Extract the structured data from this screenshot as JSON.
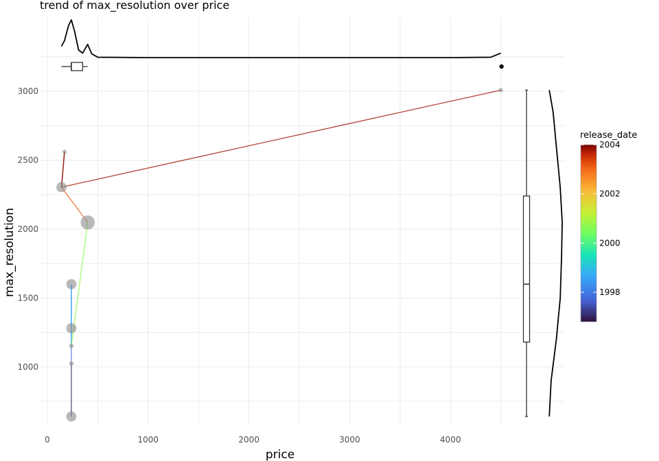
{
  "chart_data": {
    "type": "scatter",
    "title": "trend of max_resolution over price",
    "xlabel": "price",
    "ylabel": "max_resolution",
    "xlim": [
      -80,
      4800
    ],
    "ylim": [
      540,
      3460
    ],
    "x_ticks": [
      0,
      1000,
      2000,
      3000,
      4000
    ],
    "y_ticks": [
      1000,
      1500,
      2000,
      2500,
      3000
    ],
    "grid": true,
    "points": [
      {
        "x": 238,
        "y": 640,
        "size": 0.55,
        "release_date": 1997
      },
      {
        "x": 238,
        "y": 1024,
        "size": 0.1,
        "release_date": 1997
      },
      {
        "x": 238,
        "y": 1152,
        "size": 0.1,
        "release_date": 1998.5
      },
      {
        "x": 238,
        "y": 1280,
        "size": 0.55,
        "release_date": 1998.5
      },
      {
        "x": 238,
        "y": 1600,
        "size": 0.55,
        "release_date": 1998.3
      },
      {
        "x": 400,
        "y": 2048,
        "size": 0.85,
        "release_date": 2002.5
      },
      {
        "x": 140,
        "y": 2304,
        "size": 0.55,
        "release_date": 2003.8
      },
      {
        "x": 170,
        "y": 2560,
        "size": 0.1,
        "release_date": 2004
      },
      {
        "x": 4500,
        "y": 3008,
        "size": 0.1,
        "release_date": 2003.8
      }
    ],
    "line_order": [
      {
        "x": 238,
        "y": 640,
        "release_date": 1997
      },
      {
        "x": 238,
        "y": 1024,
        "release_date": 1997
      },
      {
        "x": 238,
        "y": 1152,
        "release_date": 1998.5
      },
      {
        "x": 238,
        "y": 1600,
        "release_date": 1998.3
      },
      {
        "x": 238,
        "y": 1152,
        "release_date": 1998.8
      },
      {
        "x": 400,
        "y": 2048,
        "release_date": 2002.5
      },
      {
        "x": 140,
        "y": 2304,
        "release_date": 2003.8
      },
      {
        "x": 170,
        "y": 2560,
        "release_date": 2004
      },
      {
        "x": 140,
        "y": 2304,
        "release_date": 2003.8
      },
      {
        "x": 4500,
        "y": 3008,
        "release_date": 2003.8
      }
    ],
    "marginal_x_density": [
      [
        140,
        0.3
      ],
      [
        170,
        0.45
      ],
      [
        210,
        0.85
      ],
      [
        238,
        1.0
      ],
      [
        270,
        0.7
      ],
      [
        310,
        0.2
      ],
      [
        350,
        0.12
      ],
      [
        400,
        0.35
      ],
      [
        440,
        0.1
      ],
      [
        500,
        0.01
      ],
      [
        1000,
        0.0
      ],
      [
        2000,
        0.0
      ],
      [
        3000,
        0.0
      ],
      [
        4000,
        0.0
      ],
      [
        4400,
        0.01
      ],
      [
        4500,
        0.12
      ]
    ],
    "marginal_x_box": {
      "whisker_low": 140,
      "q1": 238,
      "median": 238,
      "q3": 350,
      "whisker_high": 400,
      "outliers": [
        4500
      ]
    },
    "marginal_y_box": {
      "whisker_low": 640,
      "q1": 1180,
      "median": 1600,
      "q3": 2240,
      "whisker_high": 3008
    },
    "marginal_y_density": [
      [
        640,
        0.01
      ],
      [
        900,
        0.15
      ],
      [
        1200,
        0.55
      ],
      [
        1500,
        0.85
      ],
      [
        1800,
        0.95
      ],
      [
        2048,
        1.0
      ],
      [
        2300,
        0.85
      ],
      [
        2600,
        0.55
      ],
      [
        2850,
        0.3
      ],
      [
        3008,
        0.01
      ]
    ],
    "legend": {
      "title": "release_date",
      "min": 1996.8,
      "max": 2004,
      "ticks": [
        1998,
        2000,
        2002,
        2004
      ],
      "placement": "right"
    }
  }
}
